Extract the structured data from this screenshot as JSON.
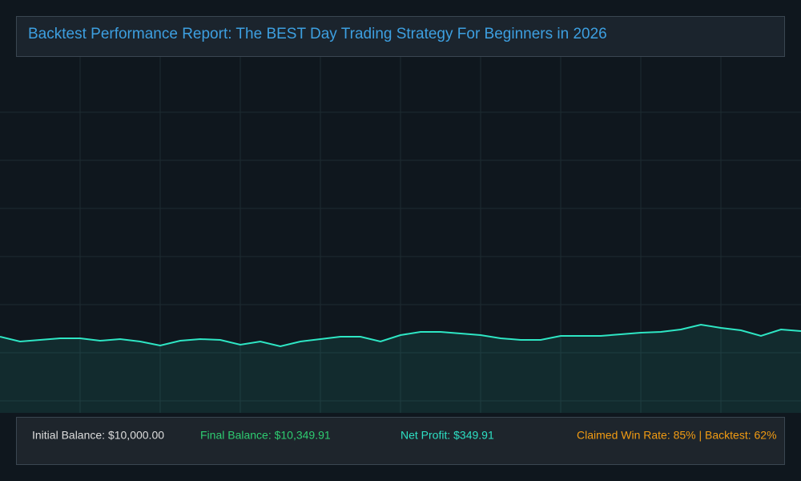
{
  "header": {
    "title": "Backtest Performance Report: The BEST Day Trading Strategy For Beginners in 2026"
  },
  "chart_data": {
    "type": "line",
    "x": [
      0,
      1,
      2,
      3,
      4,
      5,
      6,
      7,
      8,
      9,
      10,
      11,
      12,
      13,
      14,
      15,
      16,
      17,
      18,
      19,
      20,
      21,
      22,
      23,
      24,
      25,
      26,
      27,
      28,
      29,
      30,
      31,
      32,
      33,
      34,
      35,
      36,
      37,
      38,
      39,
      40
    ],
    "series": [
      {
        "color": "#2ee6c4",
        "values": [
          10000,
          9700,
          9800,
          9900,
          9900,
          9750,
          9850,
          9700,
          9450,
          9750,
          9850,
          9800,
          9500,
          9700,
          9400,
          9700,
          9850,
          10000,
          10000,
          9700,
          10100,
          10300,
          10300,
          10200,
          10100,
          9900,
          9800,
          9800,
          10050,
          10050,
          10050,
          10150,
          10250,
          10300,
          10450,
          10750,
          10550,
          10400,
          10050,
          10450,
          10350
        ]
      }
    ],
    "xlim": [
      0,
      40
    ],
    "xticks": [
      4,
      8,
      12,
      16,
      20,
      24,
      28,
      32,
      36
    ],
    "ylim": [
      5250,
      27000
    ],
    "yticks": [
      6000,
      9000,
      12000,
      15000,
      18000,
      21000,
      24000
    ],
    "grid": true
  },
  "stats": [
    {
      "text": "Initial Balance: $10,000.00",
      "color": "#dddddd"
    },
    {
      "text": "Final Balance: $10,349.91",
      "color": "#2ecc71"
    },
    {
      "text": "Net Profit: $349.91",
      "color": "#2de0c4"
    },
    {
      "text": "Claimed Win Rate: 85% | Backtest: 62%",
      "color": "#f39c12"
    }
  ]
}
